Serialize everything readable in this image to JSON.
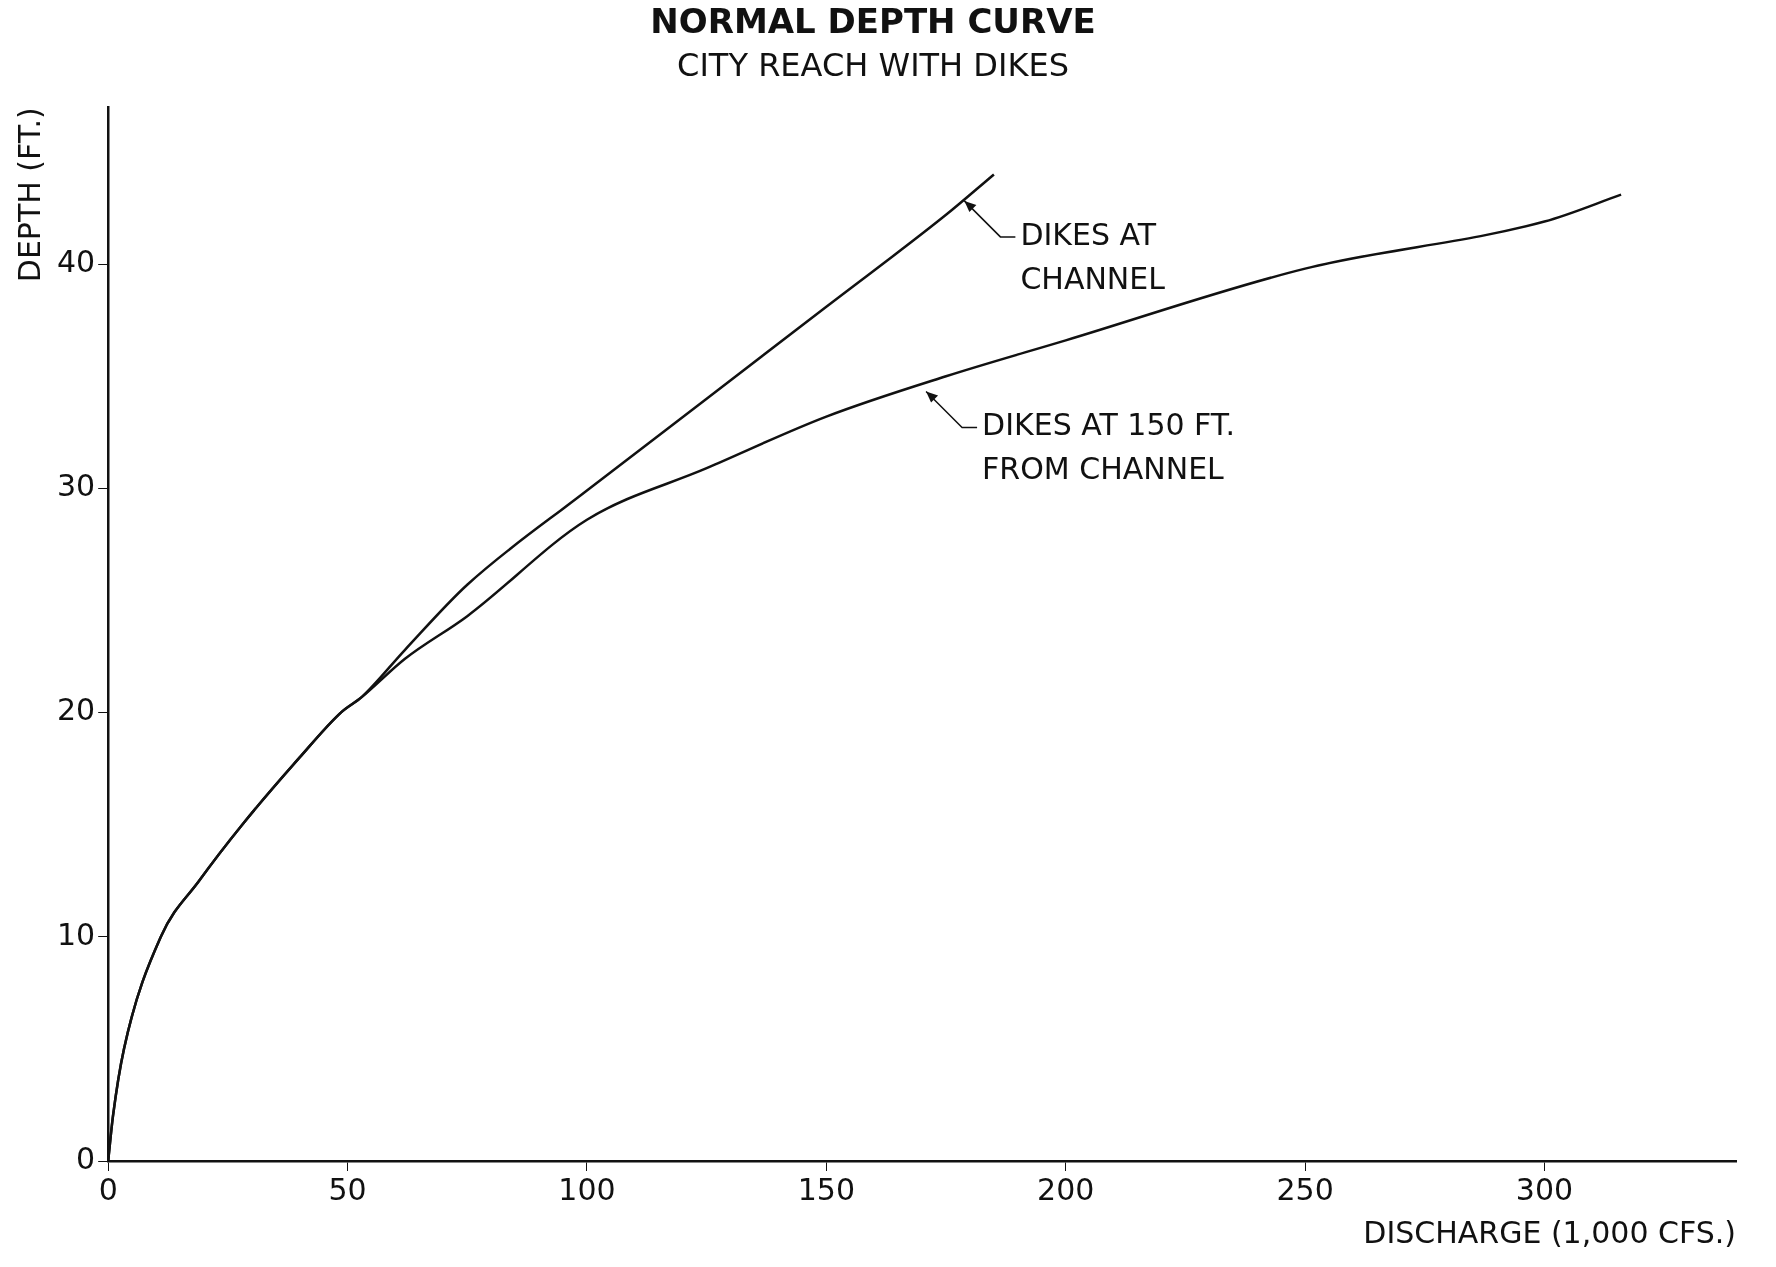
{
  "chart_data": {
    "type": "line",
    "title": "NORMAL DEPTH CURVE",
    "subtitle": "CITY REACH WITH DIKES",
    "xlabel": "DISCHARGE (1,000 CFS.)",
    "ylabel": "DEPTH (FT.)",
    "xlim": [
      0,
      340
    ],
    "ylim": [
      0,
      47
    ],
    "xticks": [
      0,
      50,
      100,
      150,
      200,
      250,
      300
    ],
    "yticks": [
      0,
      10,
      20,
      30,
      40
    ],
    "grid": false,
    "legend": false,
    "marker": "none",
    "line_style": "solid",
    "series": [
      {
        "color": "#111111",
        "x": [
          0,
          1,
          3.3,
          11,
          19,
          28,
          40,
          48.6,
          53,
          62,
          75,
          100,
          125,
          150,
          175,
          185
        ],
        "values": [
          0,
          2,
          5,
          10,
          12.5,
          15,
          18,
          20,
          20.7,
          22.8,
          25.7,
          29.9,
          34,
          38.1,
          42.2,
          44
        ]
      },
      {
        "color": "#111111",
        "x": [
          0,
          1,
          3.3,
          11,
          19,
          28,
          40,
          48.6,
          53,
          62,
          75,
          100,
          125,
          150,
          175,
          200,
          250,
          300,
          316
        ],
        "values": [
          0,
          2,
          5,
          10,
          12.5,
          15,
          18,
          20,
          20.7,
          22.4,
          24.3,
          28.6,
          30.9,
          33.2,
          35,
          36.6,
          39.8,
          41.9,
          43.1
        ]
      }
    ],
    "annotations": [
      {
        "text": "DIKES AT\nCHANNEL",
        "x": 178,
        "y": 43
      },
      {
        "text": "DIKES AT 150 FT.\nFROM CHANNEL",
        "x": 170,
        "y": 34.5
      }
    ]
  }
}
